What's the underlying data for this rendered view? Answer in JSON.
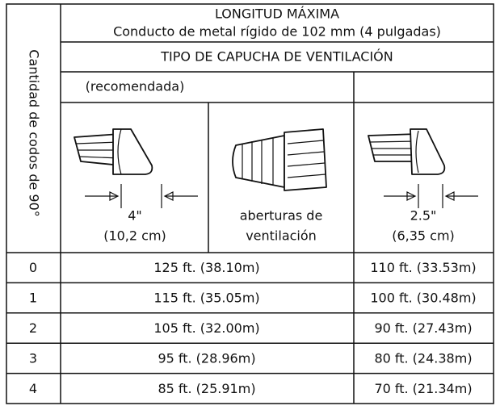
{
  "header": {
    "side_label": "Cantidad de codos de 90°",
    "title": "LONGITUD MÁXIMA",
    "subtitle": "Conducto de metal rígido de 102 mm (4 pulgadas)",
    "hood_type": "TIPO DE CAPUCHA DE VENTILACIÓN",
    "recommended": "(recomendada)"
  },
  "hoods": [
    {
      "lines": [
        "4\"",
        "(10,2 cm)"
      ]
    },
    {
      "lines": [
        "aberturas de",
        "ventilación"
      ]
    },
    {
      "lines": [
        "2.5\"",
        "(6,35 cm)"
      ]
    }
  ],
  "table": {
    "rows": [
      [
        "0",
        "125 ft. (38.10m)",
        "110 ft. (33.53m)"
      ],
      [
        "1",
        "115 ft. (35.05m)",
        "100 ft. (30.48m)"
      ],
      [
        "2",
        "105 ft. (32.00m)",
        "90 ft. (27.43m)"
      ],
      [
        "3",
        "95 ft. (28.96m)",
        "80 ft. (24.38m)"
      ],
      [
        "4",
        "85 ft. (25.91m)",
        "70 ft. (21.34m)"
      ]
    ]
  }
}
